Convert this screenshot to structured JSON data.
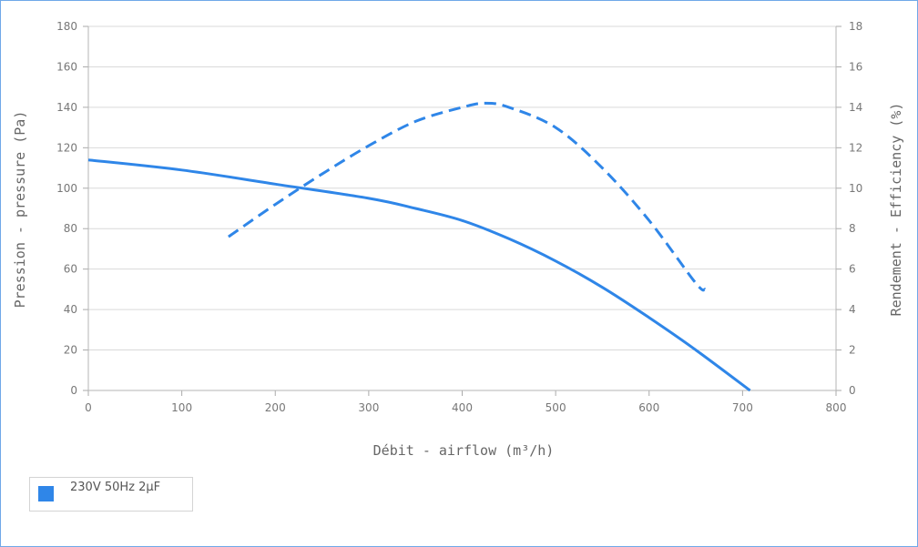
{
  "chart_data": {
    "type": "line",
    "xlabel": "Débit - airflow (m³/h)",
    "ylabel": "Pression - pressure (Pa)",
    "y2label": "Rendement - Efficiency (%)",
    "xlim": [
      0,
      800
    ],
    "ylim": [
      0,
      180
    ],
    "y2lim": [
      0,
      18
    ],
    "x_ticks": [
      "0",
      "100",
      "200",
      "300",
      "400",
      "500",
      "600",
      "700",
      "800"
    ],
    "y_ticks": [
      "0",
      "20",
      "40",
      "60",
      "80",
      "100",
      "120",
      "140",
      "160",
      "180"
    ],
    "y2_ticks": [
      "0",
      "2",
      "4",
      "6",
      "8",
      "10",
      "12",
      "14",
      "16",
      "18"
    ],
    "grid": true,
    "color": "#2f86e8",
    "series": [
      {
        "name": "230V 50Hz 2µF",
        "axis": "left",
        "style": "solid",
        "points": [
          [
            0,
            114
          ],
          [
            100,
            109
          ],
          [
            200,
            102
          ],
          [
            300,
            95
          ],
          [
            350,
            90
          ],
          [
            400,
            84
          ],
          [
            450,
            75
          ],
          [
            500,
            64
          ],
          [
            550,
            51
          ],
          [
            600,
            36
          ],
          [
            650,
            20
          ],
          [
            708,
            0
          ]
        ]
      },
      {
        "axis": "right",
        "style": "dashed",
        "points": [
          [
            150,
            7.6
          ],
          [
            200,
            9.2
          ],
          [
            250,
            10.7
          ],
          [
            300,
            12.1
          ],
          [
            350,
            13.3
          ],
          [
            400,
            14.0
          ],
          [
            425,
            14.2
          ],
          [
            450,
            14.0
          ],
          [
            500,
            13.0
          ],
          [
            550,
            11.0
          ],
          [
            600,
            8.4
          ],
          [
            650,
            5.3
          ],
          [
            660,
            5.0
          ]
        ]
      }
    ],
    "legend": {
      "position": "bottom-left",
      "label": "230V 50Hz 2µF"
    }
  }
}
